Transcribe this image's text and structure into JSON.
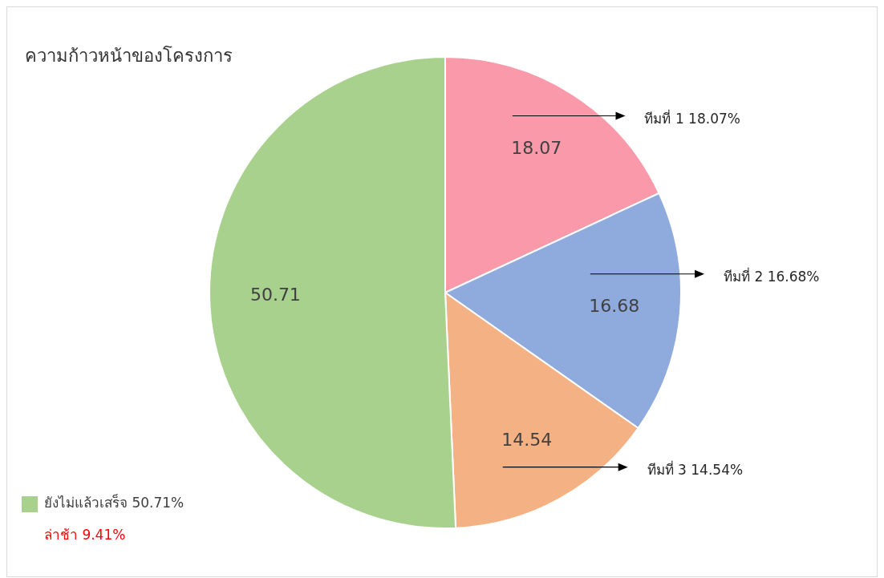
{
  "chart_data": {
    "type": "pie",
    "title": "ความก้าวหน้าของโครงการ",
    "categories": [
      "ทีมที่ 1 18.07%",
      "ทีมที่ 2 16.68%",
      "ทีมที่ 3 14.54%",
      "ยังไม่แล้วเสร็จ 50.71%"
    ],
    "values": [
      18.07,
      16.68,
      14.54,
      50.71
    ],
    "colors": [
      "#f999aa",
      "#8faadc",
      "#f4b183",
      "#a9d18e"
    ],
    "data_labels": true,
    "legend": "bottom left",
    "annotations": [
      "ล่าช้า 9.41%"
    ]
  }
}
